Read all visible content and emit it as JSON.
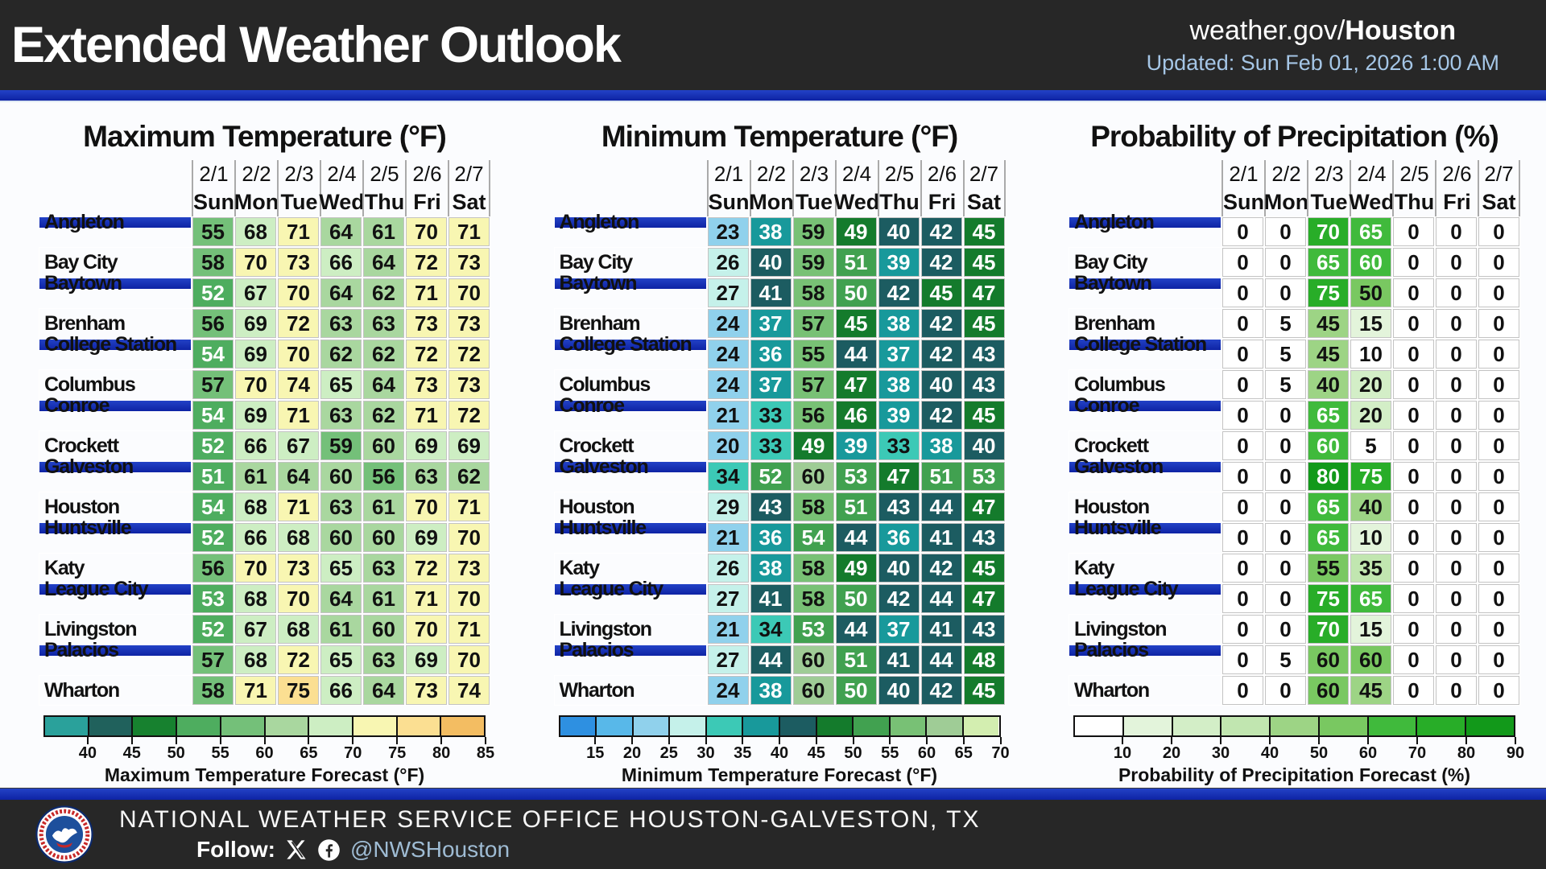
{
  "header": {
    "title": "Extended Weather Outlook",
    "site_prefix": "weather.gov/",
    "site_bold": "Houston",
    "updated": "Updated: Sun Feb 01, 2026 1:00 AM"
  },
  "columns": {
    "dates": [
      "2/1",
      "2/2",
      "2/3",
      "2/4",
      "2/5",
      "2/6",
      "2/7"
    ],
    "days": [
      "Sun",
      "Mon",
      "Tue",
      "Wed",
      "Thu",
      "Fri",
      "Sat"
    ]
  },
  "cities": [
    "Angleton",
    "Bay City",
    "Baytown",
    "Brenham",
    "College Station",
    "Columbus",
    "Conroe",
    "Crockett",
    "Galveston",
    "Houston",
    "Huntsville",
    "Katy",
    "League City",
    "Livingston",
    "Palacios",
    "Wharton"
  ],
  "chart_data": [
    {
      "type": "heatmap",
      "title": "Maximum Temperature (°F)",
      "values": [
        [
          55,
          68,
          71,
          64,
          61,
          70,
          71
        ],
        [
          58,
          70,
          73,
          66,
          64,
          72,
          73
        ],
        [
          52,
          67,
          70,
          64,
          62,
          71,
          70
        ],
        [
          56,
          69,
          72,
          63,
          63,
          73,
          73
        ],
        [
          54,
          69,
          70,
          62,
          62,
          72,
          72
        ],
        [
          57,
          70,
          74,
          65,
          64,
          73,
          73
        ],
        [
          54,
          69,
          71,
          63,
          62,
          71,
          72
        ],
        [
          52,
          66,
          67,
          59,
          60,
          69,
          69
        ],
        [
          51,
          61,
          64,
          60,
          56,
          63,
          62
        ],
        [
          54,
          68,
          71,
          63,
          61,
          70,
          71
        ],
        [
          52,
          66,
          68,
          60,
          60,
          69,
          70
        ],
        [
          56,
          70,
          73,
          65,
          63,
          72,
          73
        ],
        [
          53,
          68,
          70,
          64,
          61,
          71,
          70
        ],
        [
          52,
          67,
          68,
          61,
          60,
          70,
          71
        ],
        [
          57,
          68,
          72,
          65,
          63,
          69,
          70
        ],
        [
          58,
          71,
          75,
          66,
          64,
          73,
          74
        ]
      ],
      "white_text_buckets": {
        "from": 0,
        "to": 3
      },
      "colorbar": {
        "label": "Maximum Temperature Forecast (°F)",
        "ticks": [
          40,
          45,
          50,
          55,
          60,
          65,
          70,
          75,
          80,
          85
        ],
        "colors": [
          "#2aa19b",
          "#20615c",
          "#17812f",
          "#4ead5f",
          "#74c079",
          "#a9d79f",
          "#cdeec3",
          "#f8f6b2",
          "#fbdf92",
          "#f3bd62"
        ]
      }
    },
    {
      "type": "heatmap",
      "title": "Minimum Temperature (°F)",
      "values": [
        [
          23,
          38,
          59,
          49,
          40,
          42,
          45
        ],
        [
          26,
          40,
          59,
          51,
          39,
          42,
          45
        ],
        [
          27,
          41,
          58,
          50,
          42,
          45,
          47
        ],
        [
          24,
          37,
          57,
          45,
          38,
          42,
          45
        ],
        [
          24,
          36,
          55,
          44,
          37,
          42,
          43
        ],
        [
          24,
          37,
          57,
          47,
          38,
          40,
          43
        ],
        [
          21,
          33,
          56,
          46,
          39,
          42,
          45
        ],
        [
          20,
          33,
          49,
          39,
          33,
          38,
          40
        ],
        [
          34,
          52,
          60,
          53,
          47,
          51,
          53
        ],
        [
          29,
          43,
          58,
          51,
          43,
          44,
          47
        ],
        [
          21,
          36,
          54,
          44,
          36,
          41,
          43
        ],
        [
          26,
          38,
          58,
          49,
          40,
          42,
          45
        ],
        [
          27,
          41,
          58,
          50,
          42,
          44,
          47
        ],
        [
          21,
          34,
          53,
          44,
          37,
          41,
          43
        ],
        [
          27,
          44,
          60,
          51,
          41,
          44,
          48
        ],
        [
          24,
          38,
          60,
          50,
          40,
          42,
          45
        ]
      ],
      "white_text_buckets": {
        "from": 5,
        "to": 8
      },
      "colorbar": {
        "label": "Minimum Temperature Forecast (°F)",
        "ticks": [
          15,
          20,
          25,
          30,
          35,
          40,
          45,
          50,
          55,
          60,
          65,
          70
        ],
        "colors": [
          "#2e90e1",
          "#58b8e9",
          "#90d1ec",
          "#c5f1ea",
          "#3cc9b6",
          "#18999b",
          "#1c5c61",
          "#147b2c",
          "#41a150",
          "#78c175",
          "#9fcc96",
          "#d3eeb0"
        ]
      }
    },
    {
      "type": "heatmap",
      "title": "Probability of Precipitation (%)",
      "values": [
        [
          0,
          0,
          70,
          65,
          0,
          0,
          0
        ],
        [
          0,
          0,
          65,
          60,
          0,
          0,
          0
        ],
        [
          0,
          0,
          75,
          50,
          0,
          0,
          0
        ],
        [
          0,
          5,
          45,
          15,
          0,
          0,
          0
        ],
        [
          0,
          5,
          45,
          {
            "v": 10,
            "bucket_shift": -1
          },
          0,
          0,
          0
        ],
        [
          0,
          5,
          40,
          20,
          0,
          0,
          0
        ],
        [
          0,
          0,
          65,
          20,
          0,
          0,
          0
        ],
        [
          0,
          0,
          60,
          5,
          0,
          0,
          0
        ],
        [
          0,
          0,
          80,
          75,
          0,
          0,
          0
        ],
        [
          0,
          0,
          65,
          40,
          0,
          0,
          0
        ],
        [
          0,
          0,
          65,
          10,
          0,
          0,
          0
        ],
        [
          0,
          0,
          55,
          35,
          0,
          0,
          0
        ],
        [
          0,
          0,
          75,
          65,
          0,
          0,
          0
        ],
        [
          0,
          0,
          70,
          15,
          0,
          0,
          0
        ],
        [
          0,
          5,
          {
            "v": 60,
            "bucket_shift": -1
          },
          {
            "v": 60,
            "bucket_shift": -1
          },
          0,
          0,
          0
        ],
        [
          0,
          0,
          {
            "v": 60,
            "bucket_shift": -1
          },
          45,
          0,
          0,
          0
        ]
      ],
      "white_text_buckets": {
        "from": 6,
        "to": 8
      },
      "colorbar": {
        "label": "Probability of Precipitation Forecast (%)",
        "ticks": [
          10,
          20,
          30,
          40,
          50,
          60,
          70,
          80,
          90
        ],
        "colors": [
          "#ffffff",
          "#e3f4db",
          "#d3eec7",
          "#c1e6b0",
          "#9dd485",
          "#79c861",
          "#40ba3c",
          "#28ad28",
          "#12991a"
        ]
      }
    }
  ],
  "footer": {
    "office": "NATIONAL WEATHER SERVICE OFFICE HOUSTON-GALVESTON, TX",
    "follow_label": "Follow:",
    "handle": "@NWSHouston"
  },
  "colors": {
    "header_bg": "#272727",
    "stripe_blue": "#0e23a4",
    "stripe_blue_light": "#2342c6",
    "page_bg": "#fbfcfe",
    "updated_text": "#a5c6e6",
    "handle_text": "#9fbcd4",
    "row_stripe": "#d4d4d4",
    "grid_line": "#c3c3c3"
  }
}
